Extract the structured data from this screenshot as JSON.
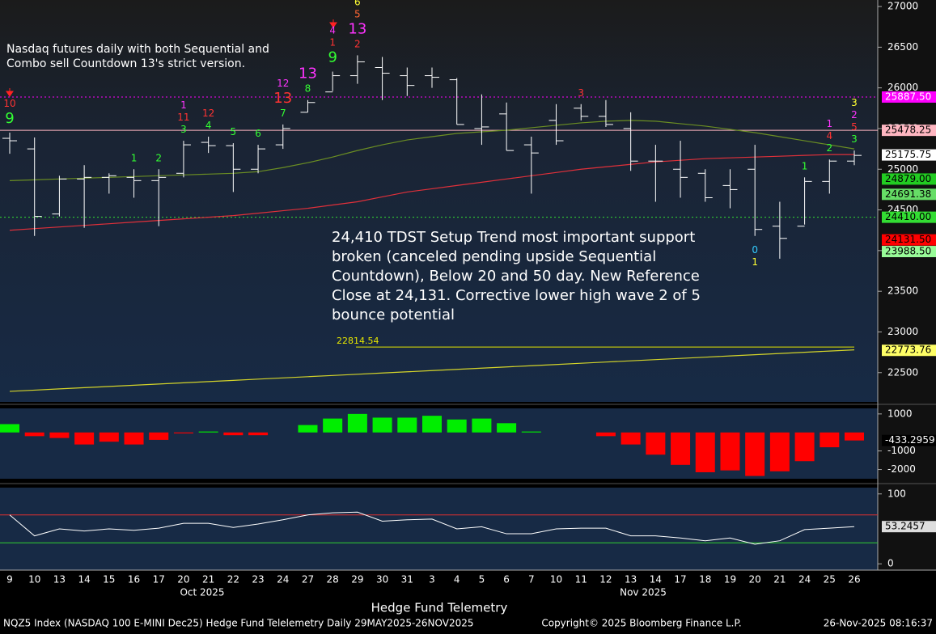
{
  "title_note": "Nasdaq futures daily with both Sequential and Combo sell Countdown 13's strict version.",
  "annotation": "24,410 TDST Setup Trend most important support broken (canceled pending upside Sequential Countdown), Below 20 and 50 day. New Reference Close at 24,131.  Corrective lower high wave 2 of 5 bounce potential",
  "watermark": "Hedge Fund Telemetry",
  "footer": {
    "left": "NQZ5 Index (NASDAQ 100 E-MINI Dec25) Hedge Fund Telelemetry Daily 29MAY2025-26NOV2025",
    "center": "Copyright© 2025 Bloomberg Finance L.P.",
    "right": "26-Nov-2025 08:16:37"
  },
  "month_labels": [
    "Oct 2025",
    "Nov 2025"
  ],
  "chart_data": [
    {
      "type": "ohlc",
      "categories": [
        "9",
        "10",
        "13",
        "14",
        "15",
        "16",
        "17",
        "20",
        "21",
        "22",
        "23",
        "24",
        "27",
        "28",
        "29",
        "30",
        "31",
        "3",
        "4",
        "5",
        "6",
        "7",
        "10",
        "11",
        "12",
        "13",
        "14",
        "17",
        "18",
        "19",
        "20",
        "21",
        "24",
        "25",
        "26"
      ],
      "open": [
        25380,
        25250,
        24450,
        24880,
        24900,
        24900,
        24860,
        24950,
        25330,
        25290,
        25000,
        25300,
        25700,
        25950,
        26150,
        26250,
        26150,
        26150,
        26100,
        25500,
        25680,
        25300,
        25600,
        25750,
        25650,
        25500,
        25100,
        25000,
        24950,
        24800,
        25000,
        24300,
        24300,
        24850,
        25100
      ],
      "high": [
        25450,
        25390,
        24920,
        25050,
        24950,
        25000,
        25000,
        25350,
        25400,
        25320,
        25300,
        25550,
        25850,
        26200,
        26400,
        26380,
        26250,
        26250,
        26120,
        25920,
        25820,
        25400,
        25800,
        25800,
        25850,
        25700,
        25300,
        25350,
        25000,
        25000,
        25300,
        24600,
        24900,
        25120,
        25230
      ],
      "low": [
        25190,
        24180,
        24420,
        24280,
        24700,
        24650,
        24300,
        24900,
        25200,
        24720,
        24950,
        25250,
        25700,
        25960,
        26050,
        25850,
        25900,
        26000,
        25550,
        25300,
        25230,
        24700,
        25300,
        25600,
        25520,
        24980,
        24600,
        24650,
        24600,
        24520,
        24180,
        23900,
        24320,
        24700,
        25050
      ],
      "close": [
        25350,
        24420,
        24880,
        24900,
        24920,
        24860,
        24900,
        25300,
        25290,
        25000,
        25250,
        25500,
        25820,
        26150,
        26320,
        26180,
        26030,
        26130,
        25550,
        25520,
        25230,
        25200,
        25350,
        25650,
        25550,
        25100,
        25100,
        24900,
        24650,
        24750,
        24260,
        24150,
        24850,
        25100,
        25170
      ],
      "bar_color": "#ffffff",
      "moving_averages": [
        {
          "color": "#6b8e23",
          "values": [
            24860,
            24870,
            24880,
            24890,
            24900,
            24910,
            24920,
            24930,
            24940,
            24950,
            24970,
            25020,
            25080,
            25150,
            25230,
            25300,
            25360,
            25400,
            25440,
            25460,
            25480,
            25510,
            25540,
            25570,
            25590,
            25600,
            25590,
            25560,
            25530,
            25490,
            25450,
            25400,
            25350,
            25300,
            25250
          ]
        },
        {
          "color": "#e0303a",
          "values": [
            24250,
            24270,
            24290,
            24310,
            24330,
            24350,
            24370,
            24390,
            24410,
            24430,
            24460,
            24490,
            24520,
            24560,
            24600,
            24660,
            24720,
            24760,
            24800,
            24840,
            24880,
            24920,
            24960,
            25000,
            25030,
            25060,
            25090,
            25110,
            25130,
            25140,
            25150,
            25160,
            25170,
            25180,
            25180
          ]
        },
        {
          "color": "#d4d42a",
          "values": [
            22270,
            22285,
            22300,
            22315,
            22330,
            22345,
            22360,
            22375,
            22390,
            22405,
            22420,
            22435,
            22450,
            22465,
            22480,
            22495,
            22510,
            22525,
            22540,
            22555,
            22570,
            22585,
            22600,
            22615,
            22630,
            22645,
            22660,
            22675,
            22690,
            22705,
            22720,
            22735,
            22750,
            22765,
            22780
          ]
        }
      ],
      "counts": [
        [
          {
            "text": "9",
            "color": "#33ff33",
            "big": true
          },
          {
            "text": "10",
            "color": "#ff3333"
          }
        ],
        null,
        null,
        null,
        null,
        [
          {
            "text": "1",
            "color": "#33ff33"
          }
        ],
        [
          {
            "text": "2",
            "color": "#33ff33"
          }
        ],
        [
          {
            "text": "3",
            "color": "#33ff33"
          },
          {
            "text": "11",
            "color": "#ff3333"
          },
          {
            "text": "1",
            "color": "#ff33ff"
          }
        ],
        [
          {
            "text": "4",
            "color": "#33ff33"
          },
          {
            "text": "12",
            "color": "#ff3333"
          }
        ],
        [
          {
            "text": "5",
            "color": "#33ff33"
          }
        ],
        [
          {
            "text": "6",
            "color": "#33ff33"
          }
        ],
        [
          {
            "text": "7",
            "color": "#33ff33"
          },
          {
            "text": "13",
            "color": "#ff3333",
            "big": true
          },
          {
            "text": "12",
            "color": "#ff33ff"
          }
        ],
        [
          {
            "text": "8",
            "color": "#33ff33"
          },
          {
            "text": "13",
            "color": "#ff33ff",
            "big": true
          }
        ],
        [
          {
            "text": "9",
            "color": "#33ff33",
            "big": true
          },
          {
            "text": "1",
            "color": "#ff3333"
          },
          {
            "text": "4",
            "color": "#ff33ff"
          }
        ],
        [
          {
            "text": "2",
            "color": "#ff3333"
          },
          {
            "text": "13",
            "color": "#ff33ff",
            "big": true
          },
          {
            "text": "5",
            "color": "#ff6633"
          },
          {
            "text": "6",
            "color": "#ffff33"
          }
        ],
        null,
        null,
        null,
        null,
        null,
        null,
        null,
        null,
        [
          {
            "text": "3",
            "color": "#ff3333"
          }
        ],
        null,
        null,
        null,
        null,
        null,
        null,
        [
          {
            "text": "0",
            "color": "#33ccff",
            "below": true
          },
          {
            "text": "1",
            "color": "#ffff33",
            "below": true
          }
        ],
        null,
        [
          {
            "text": "1",
            "color": "#33ff33"
          }
        ],
        [
          {
            "text": "2",
            "color": "#33ff33"
          },
          {
            "text": "4",
            "color": "#ff3333"
          },
          {
            "text": "1",
            "color": "#ff33ff"
          }
        ],
        [
          {
            "text": "3",
            "color": "#33ff33"
          },
          {
            "text": "5",
            "color": "#ff3333"
          },
          {
            "text": "2",
            "color": "#ff33ff"
          },
          {
            "text": "3",
            "color": "#ffff33"
          }
        ]
      ],
      "levels": [
        {
          "value": 25887.5,
          "label": "25887.50",
          "color": "#ff00ff",
          "text_color": "#ffffff",
          "style": "dotted"
        },
        {
          "value": 25478.25,
          "label": "25478.25",
          "color": "#ffb6c1",
          "text_color": "#000000",
          "style": "solid"
        },
        {
          "value": 25175.75,
          "label": "25175.75",
          "color": "#ffffff",
          "text_color": "#000000",
          "style": "none"
        },
        {
          "value": 24879,
          "label": "24879.00",
          "color": "#22cc22",
          "text_color": "#000000",
          "style": "none"
        },
        {
          "value": 24691.38,
          "label": "24691.38",
          "color": "#66dd66",
          "text_color": "#000000",
          "style": "none"
        },
        {
          "value": 24410,
          "label": "24410.00",
          "color": "#33dd33",
          "text_color": "#000000",
          "style": "dotted"
        },
        {
          "value": 24131.5,
          "label": "24131.50",
          "color": "#ff0000",
          "text_color": "#000000",
          "style": "none"
        },
        {
          "value": 23988.5,
          "label": "23988.50",
          "color": "#98fb98",
          "text_color": "#000000",
          "style": "none"
        },
        {
          "value": 22773.76,
          "label": "22773.76",
          "color": "#ffff66",
          "text_color": "#000000",
          "style": "none"
        }
      ],
      "marked_level": {
        "value": 22814.54,
        "label": "22814.54",
        "color": "#e6e600"
      },
      "ylim": [
        22140,
        27080
      ],
      "yticks": [
        22500,
        23000,
        23500,
        24000,
        24500,
        25000,
        25500,
        26000,
        26500,
        27000
      ]
    },
    {
      "type": "bar",
      "values": [
        450,
        -200,
        -300,
        -650,
        -500,
        -650,
        -400,
        -50,
        50,
        -150,
        -150,
        0,
        400,
        750,
        1000,
        800,
        800,
        900,
        700,
        750,
        500,
        50,
        0,
        0,
        -200,
        -650,
        -1200,
        -1750,
        -2150,
        -2050,
        -2350,
        -2100,
        -1550,
        -800,
        -433.2959
      ],
      "value_labels": [
        null,
        null,
        null,
        null,
        null,
        null,
        null,
        null,
        null,
        null,
        null,
        null,
        null,
        null,
        null,
        null,
        null,
        null,
        null,
        null,
        null,
        null,
        null,
        null,
        null,
        null,
        null,
        null,
        null,
        null,
        null,
        null,
        null,
        null,
        "-433.2959"
      ],
      "positive_color": "#00ee00",
      "negative_color": "#ff0000",
      "ylim": [
        -2500,
        1300
      ],
      "yticks": [
        -2000,
        -1000,
        1000
      ]
    },
    {
      "type": "line",
      "values": [
        70,
        40,
        50,
        47,
        50,
        48,
        51,
        58,
        58,
        52,
        57,
        63,
        70,
        73,
        74,
        61,
        63,
        64,
        50,
        53,
        43,
        43,
        50,
        51,
        51,
        40,
        40,
        37,
        33,
        37,
        28,
        33,
        49,
        51,
        53.2457
      ],
      "value_labels": [
        null,
        null,
        null,
        null,
        null,
        null,
        null,
        null,
        null,
        null,
        null,
        null,
        null,
        null,
        null,
        null,
        null,
        null,
        null,
        null,
        null,
        null,
        null,
        null,
        null,
        null,
        null,
        null,
        null,
        null,
        null,
        null,
        null,
        null,
        "53.2457"
      ],
      "color": "#ffffff",
      "levels": [
        {
          "value": 70,
          "color": "#e03030"
        },
        {
          "value": 30,
          "color": "#30d030"
        }
      ],
      "ylim": [
        -9,
        109
      ],
      "yticks": [
        0,
        100
      ]
    }
  ]
}
